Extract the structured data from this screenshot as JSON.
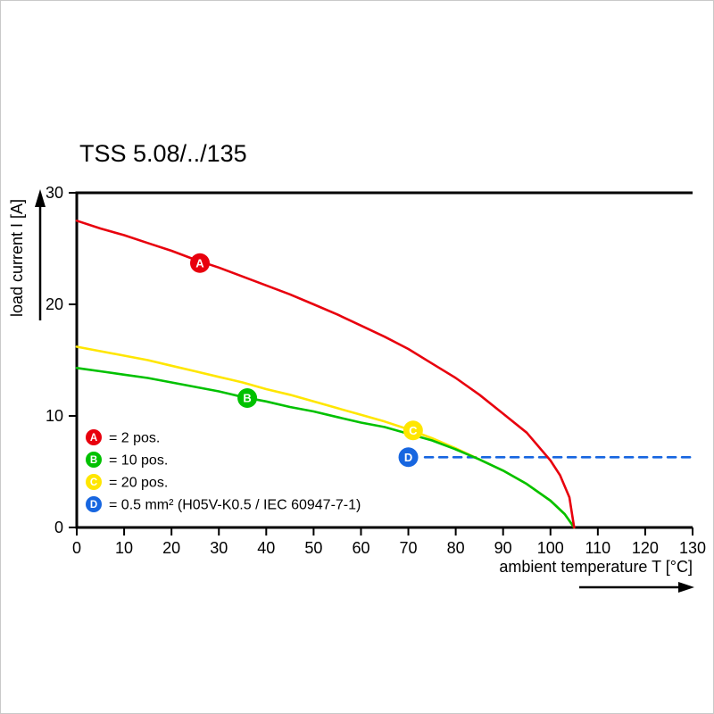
{
  "title": "TSS 5.08/../135",
  "chart_data": {
    "type": "line",
    "title": "TSS 5.08/../135",
    "xlabel": "ambient temperature T [°C]",
    "ylabel": "load current I [A]",
    "xlim": [
      0,
      130
    ],
    "ylim": [
      0,
      30
    ],
    "x_ticks": [
      0,
      10,
      20,
      30,
      40,
      50,
      60,
      70,
      80,
      90,
      100,
      110,
      120,
      130
    ],
    "y_ticks": [
      0,
      10,
      20,
      30
    ],
    "grid": false,
    "legend_position": "inside-bottom-left",
    "series": [
      {
        "id": "D",
        "name": "0.5 mm² (H05V-K0.5 / IEC 60947-7-1)",
        "color": "#1766e0",
        "style": "dashed",
        "points": [
          [
            73.5,
            6.3
          ],
          [
            130,
            6.3
          ]
        ],
        "marker": {
          "t": 70,
          "i": 6.3,
          "label": "D"
        }
      },
      {
        "id": "C",
        "name": "20 pos.",
        "color": "#ffe600",
        "style": "solid",
        "points": [
          [
            0,
            16.2
          ],
          [
            5,
            15.8
          ],
          [
            10,
            15.4
          ],
          [
            15,
            15.0
          ],
          [
            20,
            14.5
          ],
          [
            25,
            14.0
          ],
          [
            30,
            13.5
          ],
          [
            35,
            13.0
          ],
          [
            40,
            12.4
          ],
          [
            45,
            11.9
          ],
          [
            50,
            11.3
          ],
          [
            55,
            10.7
          ],
          [
            60,
            10.1
          ],
          [
            65,
            9.5
          ],
          [
            70,
            8.8
          ],
          [
            75,
            8.0
          ],
          [
            80,
            7.1
          ],
          [
            85,
            6.1
          ],
          [
            90,
            5.1
          ],
          [
            95,
            3.9
          ],
          [
            100,
            2.4
          ],
          [
            103,
            1.2
          ],
          [
            105,
            0
          ]
        ],
        "marker": {
          "t": 71,
          "i": 8.7,
          "label": "C"
        }
      },
      {
        "id": "B",
        "name": "10 pos.",
        "color": "#00c100",
        "style": "solid",
        "points": [
          [
            0,
            14.3
          ],
          [
            5,
            14.0
          ],
          [
            10,
            13.7
          ],
          [
            15,
            13.4
          ],
          [
            20,
            13.0
          ],
          [
            25,
            12.6
          ],
          [
            30,
            12.2
          ],
          [
            35,
            11.7
          ],
          [
            40,
            11.3
          ],
          [
            45,
            10.8
          ],
          [
            50,
            10.4
          ],
          [
            55,
            9.9
          ],
          [
            60,
            9.4
          ],
          [
            65,
            9.0
          ],
          [
            70,
            8.4
          ],
          [
            75,
            7.8
          ],
          [
            80,
            7.0
          ],
          [
            85,
            6.1
          ],
          [
            90,
            5.1
          ],
          [
            95,
            3.9
          ],
          [
            100,
            2.4
          ],
          [
            103,
            1.2
          ],
          [
            105,
            0
          ]
        ],
        "marker": {
          "t": 36,
          "i": 11.6,
          "label": "B"
        }
      },
      {
        "id": "A",
        "name": "2 pos.",
        "color": "#e8000d",
        "style": "solid",
        "points": [
          [
            0,
            27.5
          ],
          [
            5,
            26.8
          ],
          [
            10,
            26.2
          ],
          [
            15,
            25.5
          ],
          [
            20,
            24.8
          ],
          [
            25,
            24.0
          ],
          [
            30,
            23.3
          ],
          [
            35,
            22.5
          ],
          [
            40,
            21.7
          ],
          [
            45,
            20.9
          ],
          [
            50,
            20.0
          ],
          [
            55,
            19.1
          ],
          [
            60,
            18.1
          ],
          [
            65,
            17.1
          ],
          [
            70,
            16.0
          ],
          [
            75,
            14.7
          ],
          [
            80,
            13.4
          ],
          [
            85,
            11.9
          ],
          [
            90,
            10.2
          ],
          [
            95,
            8.5
          ],
          [
            100,
            6.0
          ],
          [
            102,
            4.7
          ],
          [
            104,
            2.7
          ],
          [
            105,
            0
          ]
        ],
        "marker": {
          "t": 26,
          "i": 23.7,
          "label": "A"
        }
      }
    ],
    "legend": [
      {
        "letter": "A",
        "color": "#e8000d",
        "text": "= 2 pos."
      },
      {
        "letter": "B",
        "color": "#00c100",
        "text": "= 10 pos."
      },
      {
        "letter": "C",
        "color": "#ffe600",
        "text": "= 20 pos."
      },
      {
        "letter": "D",
        "color": "#1766e0",
        "text": "= 0.5 mm² (H05V-K0.5 / IEC 60947-7-1)"
      }
    ]
  }
}
